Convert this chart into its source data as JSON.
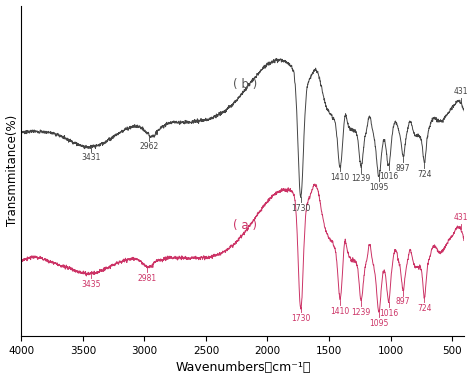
{
  "title": "",
  "xlabel": "Wavenumbers（cm⁻¹）",
  "ylabel": "Transmmitance(%)",
  "xlim": [
    4000,
    400
  ],
  "background_color": "#ffffff",
  "color_a": "#cc3366",
  "color_b": "#444444",
  "label_a": "( a )",
  "label_b": "( b )",
  "xticks": [
    4000,
    3500,
    3000,
    2500,
    2000,
    1500,
    1000,
    500
  ],
  "b_peaks_labeled": [
    [
      3431,
      "3431"
    ],
    [
      2962,
      "2962"
    ],
    [
      1730,
      "1730"
    ],
    [
      1410,
      "1410"
    ],
    [
      1239,
      "1239"
    ],
    [
      1095,
      "1095"
    ],
    [
      897,
      "897"
    ],
    [
      1016,
      "1016"
    ],
    [
      724,
      "724"
    ],
    [
      431,
      "431"
    ]
  ],
  "a_peaks_labeled": [
    [
      3435,
      "3435"
    ],
    [
      2981,
      "2981"
    ],
    [
      1730,
      "1730"
    ],
    [
      1410,
      "1410"
    ],
    [
      1239,
      "1239"
    ],
    [
      1095,
      "1095"
    ],
    [
      897,
      "897"
    ],
    [
      1016,
      "1016"
    ],
    [
      724,
      "724"
    ],
    [
      431,
      "431"
    ]
  ]
}
